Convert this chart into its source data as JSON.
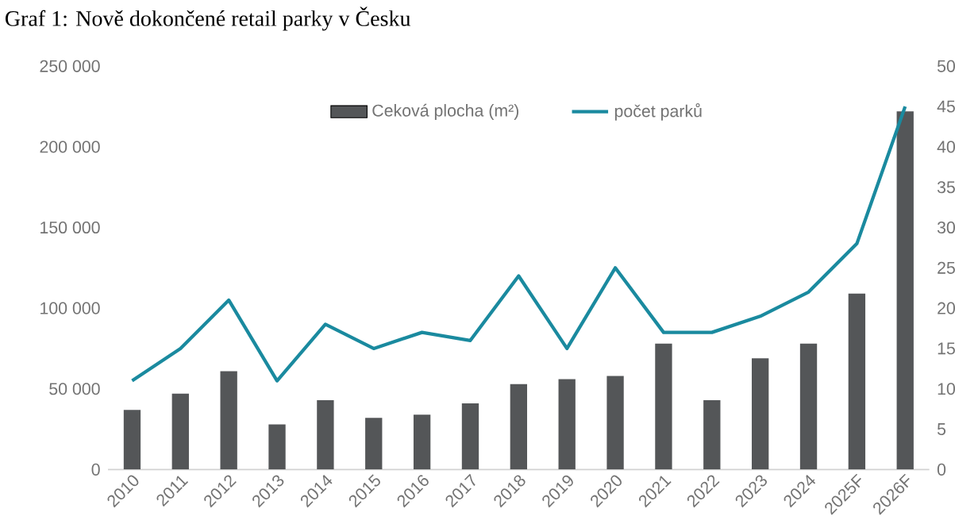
{
  "chart_data": {
    "type": "bar",
    "title": "Graf 1: Nově dokončené retail parky v Česku",
    "categories": [
      "2010",
      "2011",
      "2012",
      "2013",
      "2014",
      "2015",
      "2016",
      "2017",
      "2018",
      "2019",
      "2020",
      "2021",
      "2022",
      "2023",
      "2024",
      "2025F",
      "2026F"
    ],
    "series": [
      {
        "name": "Ceková plocha (m²)",
        "color": "#545658",
        "values": [
          37000,
          47000,
          61000,
          28000,
          43000,
          32000,
          34000,
          41000,
          53000,
          56000,
          58000,
          78000,
          43000,
          69000,
          78000,
          109000,
          222000
        ]
      },
      {
        "name": "počet parků",
        "type": "line",
        "axis": "y2",
        "color": "#1a8a9f",
        "values": [
          11,
          15,
          21,
          11,
          18,
          15,
          17,
          16,
          24,
          15,
          25,
          17,
          17,
          19,
          22,
          28,
          45
        ]
      }
    ],
    "ylim": [
      0,
      250000
    ],
    "yticks": [
      0,
      {
        "value": 50000,
        "label": "50 000"
      },
      {
        "value": 100000,
        "label": "100 000"
      },
      {
        "value": 150000,
        "label": "150 000"
      },
      {
        "value": 200000,
        "label": "200 000"
      },
      {
        "value": 250000,
        "label": "250 000"
      }
    ],
    "y2lim": [
      0,
      50
    ],
    "y2ticks": [
      0,
      5,
      10,
      15,
      20,
      25,
      30,
      35,
      40,
      45,
      50
    ],
    "legend": "top",
    "grid": false,
    "marker": "none"
  }
}
